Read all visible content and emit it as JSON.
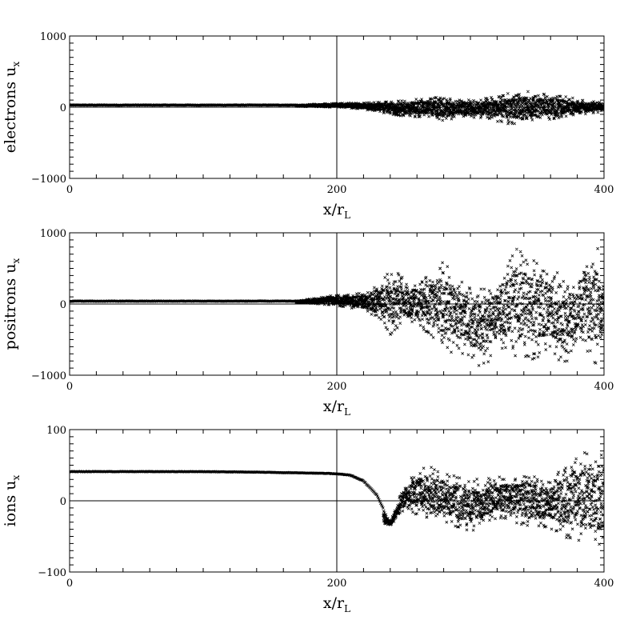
{
  "figure": {
    "x_axis_label_main": "x/r",
    "x_axis_label_sub": "L"
  },
  "chart_data": [
    {
      "type": "scatter",
      "name": "electrons",
      "ylabel_main": "electrons u",
      "ylabel_sub": "x",
      "xlabel_main": "x/r",
      "xlabel_sub": "L",
      "xlim": [
        0,
        400
      ],
      "ylim": [
        -1000,
        1000
      ],
      "x_ticks": [
        0,
        200,
        400
      ],
      "y_ticks": [
        -1000,
        0,
        1000
      ],
      "reference_lines": {
        "vertical_x": 200,
        "horizontal_y": 0
      },
      "marker": "x",
      "color": "#000000",
      "series": [
        {
          "x": [
            0,
            50,
            100,
            150,
            170,
            185,
            200,
            215,
            230,
            245,
            260,
            275,
            280,
            290,
            305,
            320,
            330,
            340,
            350,
            365,
            380,
            395,
            400
          ],
          "y": [
            30,
            30,
            30,
            30,
            30,
            45,
            55,
            60,
            70,
            90,
            120,
            140,
            150,
            100,
            120,
            160,
            200,
            230,
            200,
            170,
            120,
            80,
            60
          ]
        },
        {
          "x": [
            170,
            185,
            200,
            215,
            230,
            245,
            260,
            275,
            280,
            290,
            305,
            320,
            330,
            340,
            350,
            365,
            380,
            395,
            400
          ],
          "y": [
            10,
            5,
            0,
            -20,
            -60,
            -120,
            -140,
            -160,
            -220,
            -130,
            -150,
            -200,
            -240,
            -220,
            -190,
            -160,
            -120,
            -80,
            -40
          ]
        }
      ]
    },
    {
      "type": "scatter",
      "name": "positrons",
      "ylabel_main": "positrons u",
      "ylabel_sub": "x",
      "xlabel_main": "x/r",
      "xlabel_sub": "L",
      "xlim": [
        0,
        400
      ],
      "ylim": [
        -1000,
        1000
      ],
      "x_ticks": [
        0,
        200,
        400
      ],
      "y_ticks": [
        -1000,
        0,
        1000
      ],
      "reference_lines": {
        "vertical_x": 200,
        "horizontal_y": 0
      },
      "marker": "x",
      "color": "#000000",
      "series": [
        {
          "x": [
            0,
            50,
            100,
            150,
            170,
            185,
            200,
            215,
            230,
            240,
            260,
            280,
            300,
            320,
            335,
            345,
            360,
            380,
            395,
            400
          ],
          "y": [
            40,
            40,
            40,
            40,
            40,
            90,
            130,
            150,
            250,
            500,
            300,
            600,
            280,
            300,
            800,
            650,
            500,
            300,
            880,
            200
          ]
        },
        {
          "x": [
            170,
            185,
            200,
            215,
            230,
            240,
            260,
            280,
            300,
            310,
            320,
            335,
            345,
            360,
            370,
            380,
            395,
            400
          ],
          "y": [
            20,
            0,
            -20,
            -80,
            -180,
            -450,
            -250,
            -650,
            -750,
            -980,
            -600,
            -750,
            -800,
            -650,
            -900,
            -500,
            -950,
            -300
          ]
        }
      ]
    },
    {
      "type": "scatter",
      "name": "ions",
      "ylabel_main": "ions u",
      "ylabel_sub": "x",
      "xlabel_main": "x/r",
      "xlabel_sub": "L",
      "xlim": [
        0,
        400
      ],
      "ylim": [
        -100,
        100
      ],
      "x_ticks": [
        0,
        200,
        400
      ],
      "y_ticks": [
        -100,
        0,
        100
      ],
      "reference_lines": {
        "vertical_x": 200,
        "horizontal_y": 0
      },
      "marker": "x",
      "color": "#000000",
      "series": [
        {
          "x": [
            0,
            50,
            100,
            150,
            180,
            200,
            210,
            220,
            230,
            235,
            240,
            245,
            250,
            260,
            270,
            285,
            300,
            320,
            340,
            360,
            380,
            395,
            400
          ],
          "y": [
            41,
            41,
            41,
            40,
            39,
            38,
            36,
            28,
            8,
            -12,
            -30,
            -5,
            20,
            45,
            48,
            40,
            30,
            35,
            38,
            30,
            70,
            75,
            60
          ]
        },
        {
          "x": [
            235,
            240,
            245,
            250,
            260,
            270,
            285,
            300,
            320,
            340,
            360,
            380,
            395,
            400
          ],
          "y": [
            -32,
            -35,
            -25,
            -15,
            -20,
            -28,
            -35,
            -45,
            -25,
            -35,
            -40,
            -60,
            -70,
            -50
          ]
        }
      ]
    }
  ]
}
